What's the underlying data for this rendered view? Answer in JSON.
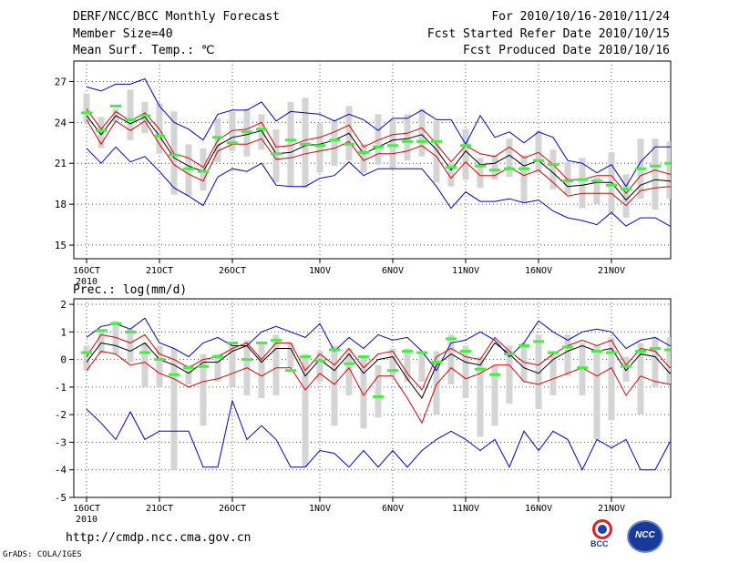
{
  "header": {
    "line1_left": "DERF/NCC/BCC Monthly Forecast",
    "line2_left": "Member Size=40",
    "line3_left": "Mean Surf. Temp.: ℃",
    "line1_right": "For 2010/10/16-2010/11/24",
    "line2_right": "Fcst Started Refer Date 2010/10/15",
    "line3_right": "Fcst Produced Date 2010/10/16"
  },
  "footer": {
    "url": "http://cmdp.ncc.cma.gov.cn",
    "grads": "GrADS: COLA/IGES",
    "logo_bcc": "BCC",
    "logo_ncc": "NCC"
  },
  "colors": {
    "blue": "#0000cc",
    "red": "#dd0000",
    "black": "#000000",
    "green": "#44ee44",
    "gray": "#d4d4d4"
  },
  "chart_data": [
    {
      "type": "line",
      "title": "Mean Surf. Temp.: ℃",
      "x_tick_labels": [
        "16OCT",
        "21OCT",
        "26OCT",
        "1NOV",
        "6NOV",
        "11NOV",
        "16NOV",
        "21NOV"
      ],
      "x_tick_days": [
        1,
        6,
        11,
        17,
        22,
        27,
        32,
        37
      ],
      "year_label": "2010",
      "ylim": [
        14,
        28.5
      ],
      "y_ticks": [
        15,
        18,
        21,
        24,
        27
      ],
      "series": [
        {
          "name": "max",
          "color": "blue",
          "values": [
            26.6,
            26.3,
            26.8,
            26.8,
            27.2,
            25.2,
            24.0,
            23.5,
            22.7,
            24.6,
            24.9,
            24.9,
            25.5,
            24.1,
            24.8,
            24.7,
            24.6,
            24.1,
            24.6,
            24.2,
            23.4,
            24.3,
            24.3,
            24.9,
            24.2,
            24.2,
            22.4,
            24.5,
            22.9,
            23.3,
            22.5,
            23.3,
            22.9,
            21.2,
            21.0,
            20.3,
            20.9,
            19.3,
            21.1,
            22.2,
            22.2,
            22.2
          ]
        },
        {
          "name": "p75",
          "color": "red",
          "values": [
            25.0,
            23.5,
            24.8,
            24.1,
            24.7,
            23.5,
            21.7,
            21.4,
            20.7,
            22.7,
            23.4,
            23.5,
            24.0,
            22.2,
            22.3,
            22.7,
            22.9,
            23.3,
            23.8,
            22.2,
            22.7,
            23.1,
            23.2,
            23.6,
            22.4,
            21.1,
            22.3,
            21.7,
            21.5,
            22.2,
            21.4,
            21.8,
            20.9,
            19.8,
            19.8,
            20.1,
            20.1,
            18.8,
            20.1,
            20.5,
            20.2,
            19.8
          ]
        },
        {
          "name": "mean",
          "color": "black",
          "values": [
            24.5,
            23.1,
            24.5,
            23.9,
            24.4,
            23.0,
            21.4,
            20.8,
            20.4,
            22.3,
            22.9,
            23.1,
            23.4,
            21.7,
            21.8,
            22.3,
            22.4,
            22.7,
            23.2,
            21.7,
            22.2,
            22.7,
            22.8,
            23.1,
            22.0,
            20.5,
            21.9,
            20.9,
            21.0,
            21.6,
            20.8,
            21.2,
            20.3,
            19.3,
            19.4,
            19.6,
            19.6,
            18.3,
            19.4,
            19.8,
            19.7,
            19.0
          ]
        },
        {
          "name": "p25",
          "color": "red",
          "values": [
            24.2,
            22.4,
            24.1,
            23.4,
            24.1,
            22.4,
            20.9,
            20.2,
            19.7,
            21.9,
            22.4,
            22.4,
            22.8,
            21.3,
            21.4,
            21.7,
            21.9,
            22.1,
            22.6,
            21.2,
            21.7,
            21.7,
            21.9,
            22.3,
            21.5,
            19.9,
            21.1,
            20.1,
            20.1,
            20.7,
            20.1,
            20.5,
            19.6,
            18.6,
            18.8,
            18.8,
            18.8,
            17.9,
            19.0,
            19.2,
            19.3,
            18.7
          ]
        },
        {
          "name": "min",
          "color": "blue",
          "values": [
            22.1,
            21.0,
            22.2,
            21.1,
            21.5,
            20.4,
            19.2,
            18.6,
            17.9,
            20.0,
            20.6,
            20.4,
            21.0,
            19.4,
            19.3,
            19.3,
            19.9,
            20.1,
            21.1,
            20.1,
            20.6,
            20.6,
            20.6,
            20.6,
            19.3,
            17.7,
            18.9,
            18.2,
            18.2,
            18.4,
            18.1,
            18.3,
            17.5,
            17.0,
            16.8,
            16.5,
            17.4,
            16.4,
            17.0,
            17.0,
            16.4,
            15.9
          ]
        }
      ],
      "bars": {
        "name": "spread",
        "color": "gray",
        "lower": [
          24.0,
          22.1,
          24.0,
          22.7,
          23.2,
          21.7,
          18.7,
          18.6,
          19.0,
          21.1,
          21.9,
          21.5,
          22.0,
          19.6,
          19.3,
          19.2,
          20.3,
          20.8,
          21.2,
          20.3,
          20.9,
          20.6,
          21.2,
          21.5,
          19.6,
          19.3,
          19.8,
          19.2,
          19.8,
          20.0,
          18.1,
          20.3,
          19.1,
          18.7,
          17.7,
          18.0,
          17.4,
          17.0,
          18.4,
          17.6,
          18.4,
          17.6
        ],
        "upper": [
          26.1,
          24.4,
          25.0,
          26.4,
          25.5,
          25.4,
          24.8,
          22.4,
          22.1,
          24.3,
          24.8,
          25.0,
          24.6,
          23.5,
          25.5,
          25.8,
          23.9,
          24.2,
          25.2,
          22.4,
          24.6,
          24.2,
          24.6,
          25.0,
          24.1,
          21.0,
          23.5,
          21.4,
          21.6,
          22.8,
          21.6,
          23.4,
          22.0,
          21.1,
          21.4,
          20.0,
          21.8,
          20.2,
          22.8,
          22.8,
          22.6,
          23.6
        ]
      },
      "green_marks": [
        24.7,
        23.4,
        25.2,
        24.2,
        24.5,
        23.0,
        21.6,
        20.6,
        20.4,
        22.9,
        22.5,
        23.3,
        23.5,
        21.7,
        22.7,
        22.4,
        22.3,
        22.7,
        22.4,
        21.8,
        22.2,
        22.3,
        22.6,
        22.6,
        22.6,
        20.7,
        22.3,
        20.8,
        20.5,
        20.6,
        20.6,
        21.2,
        20.9,
        19.7,
        19.8,
        19.7,
        19.4,
        19.1,
        20.6,
        20.8,
        21.0,
        20.4
      ]
    },
    {
      "type": "line",
      "title": "Prec.: log(mm/d)",
      "x_tick_labels": [
        "16OCT",
        "21OCT",
        "26OCT",
        "1NOV",
        "6NOV",
        "11NOV",
        "16NOV",
        "21NOV"
      ],
      "x_tick_days": [
        1,
        6,
        11,
        17,
        22,
        27,
        32,
        37
      ],
      "year_label": "2010",
      "ylim": [
        -5,
        2.2
      ],
      "y_ticks": [
        -5,
        -4,
        -3,
        -2,
        -1,
        0,
        1,
        2
      ],
      "series": [
        {
          "name": "max",
          "color": "blue",
          "values": [
            0.8,
            1.2,
            1.3,
            1.1,
            1.5,
            0.6,
            0.4,
            0.1,
            0.6,
            0.8,
            0.5,
            0.5,
            1.0,
            1.2,
            1.0,
            0.8,
            1.3,
            0.3,
            0.8,
            0.4,
            0.9,
            0.7,
            0.8,
            0.3,
            -0.4,
            0.6,
            0.7,
            1.0,
            0.7,
            0.1,
            0.6,
            1.4,
            1.0,
            0.7,
            1.0,
            1.1,
            1.0,
            0.4,
            0.7,
            0.8,
            0.5,
            0.6
          ]
        },
        {
          "name": "p75",
          "color": "red",
          "values": [
            0.1,
            0.9,
            0.8,
            0.6,
            0.9,
            0.2,
            0.0,
            -0.3,
            0.0,
            0.1,
            0.4,
            0.6,
            0.0,
            0.6,
            0.6,
            -0.4,
            0.2,
            -0.2,
            0.4,
            -0.3,
            0.2,
            0.3,
            -0.5,
            -1.1,
            0.1,
            0.4,
            0.1,
            0.0,
            0.8,
            0.3,
            -0.1,
            -0.2,
            0.2,
            0.5,
            0.7,
            0.5,
            0.7,
            -0.2,
            0.4,
            0.3,
            -0.3,
            0.2
          ]
        },
        {
          "name": "mean",
          "color": "black",
          "values": [
            -0.1,
            0.6,
            0.5,
            0.3,
            0.6,
            0.0,
            -0.2,
            -0.5,
            -0.1,
            -0.1,
            0.3,
            0.5,
            -0.1,
            0.4,
            0.4,
            -0.6,
            0.0,
            -0.4,
            0.2,
            -0.5,
            0.0,
            0.1,
            -0.7,
            -1.4,
            -0.2,
            0.2,
            -0.1,
            -0.2,
            0.6,
            0.2,
            -0.3,
            -0.5,
            0.0,
            0.3,
            0.5,
            0.3,
            0.4,
            -0.4,
            0.2,
            0.1,
            -0.5,
            0.0
          ]
        },
        {
          "name": "p25",
          "color": "red",
          "values": [
            -0.4,
            0.3,
            0.2,
            -0.2,
            -0.1,
            -0.5,
            -0.7,
            -1.0,
            -0.8,
            -0.7,
            -0.5,
            -0.3,
            -0.6,
            -0.3,
            -0.3,
            -1.1,
            -0.5,
            -0.9,
            -0.3,
            -1.3,
            -0.6,
            -0.6,
            -1.4,
            -2.3,
            -0.9,
            -0.3,
            -0.7,
            -0.5,
            -0.2,
            -0.2,
            -0.8,
            -0.9,
            -0.7,
            -0.5,
            -0.3,
            -0.6,
            -0.3,
            -1.3,
            -0.6,
            -0.8,
            -0.9,
            -0.7
          ]
        },
        {
          "name": "min",
          "color": "blue",
          "values": [
            -1.8,
            -2.3,
            -2.9,
            -1.9,
            -2.9,
            -2.6,
            -2.6,
            -2.6,
            -3.9,
            -3.9,
            -1.5,
            -2.9,
            -2.4,
            -2.9,
            -3.9,
            -3.9,
            -3.3,
            -3.4,
            -3.9,
            -3.3,
            -3.9,
            -3.3,
            -3.9,
            -3.3,
            -2.9,
            -2.6,
            -2.9,
            -3.3,
            -2.9,
            -3.9,
            -2.6,
            -3.3,
            -2.6,
            -2.9,
            -4.0,
            -2.9,
            -3.2,
            -2.9,
            -4.0,
            -4.0,
            -3.0,
            -3.0
          ]
        },
        {
          "name": "mean_green",
          "color": "green",
          "values": [
            0.3,
            1.0,
            1.2,
            1.0,
            0.3,
            0.0,
            -0.6,
            -0.4,
            -0.2,
            0.1,
            0.6,
            0.0,
            0.6,
            0.7,
            -0.4,
            0.1,
            -0.1,
            0.3,
            -0.2,
            0.1,
            -1.3,
            -0.4,
            0.3,
            0.2,
            -0.1,
            0.7,
            0.3,
            -0.3,
            -0.5,
            0.2,
            0.5,
            0.7,
            0.2,
            0.5,
            -0.3,
            0.3,
            0.2,
            -0.3,
            0.3,
            0.4,
            0.4,
            0.0
          ]
        }
      ],
      "bars": {
        "name": "spread",
        "color": "gray",
        "lower": [
          -0.4,
          0.2,
          0.2,
          -0.1,
          -1.0,
          -1.0,
          -4.0,
          -0.9,
          -2.4,
          -0.8,
          -1.0,
          -1.3,
          -1.4,
          -1.3,
          -0.3,
          -3.9,
          -0.8,
          -2.4,
          -1.3,
          -2.5,
          -2.1,
          -0.6,
          -0.8,
          -0.8,
          -2.0,
          -0.9,
          -1.4,
          -2.8,
          -2.4,
          -1.6,
          -0.8,
          -1.8,
          -1.3,
          -0.6,
          -1.3,
          -2.9,
          -2.2,
          -0.8,
          -2.0,
          -1.0,
          -0.9,
          -0.5
        ],
        "upper": [
          0.5,
          1.0,
          1.4,
          1.1,
          0.6,
          0.5,
          0.4,
          -0.2,
          0.2,
          0.2,
          0.6,
          0.7,
          0.6,
          0.9,
          0.6,
          0.2,
          0.3,
          0.5,
          0.4,
          0.1,
          -0.2,
          0.4,
          0.4,
          0.3,
          0.3,
          0.9,
          0.5,
          0.1,
          -0.2,
          0.5,
          0.6,
          0.9,
          0.3,
          0.9,
          0.6,
          0.5,
          0.8,
          0.1,
          0.6,
          0.8,
          0.8,
          0.7
        ]
      },
      "green_marks": [
        0.25,
        1.05,
        1.3,
        1.0,
        0.25,
        0.0,
        -0.55,
        -0.3,
        -0.25,
        0.1,
        0.6,
        0.0,
        0.6,
        0.7,
        -0.4,
        0.1,
        -0.05,
        0.35,
        -0.15,
        0.1,
        -1.35,
        -0.4,
        0.3,
        0.25,
        -0.1,
        0.75,
        0.3,
        -0.35,
        -0.55,
        0.2,
        0.5,
        0.65,
        0.25,
        0.45,
        -0.3,
        0.3,
        0.25,
        -0.25,
        0.3,
        0.4,
        0.35,
        0.0
      ]
    }
  ]
}
